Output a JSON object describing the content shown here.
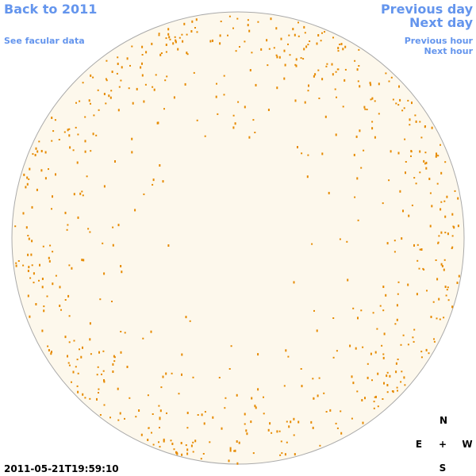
{
  "navigation": {
    "back": "Back to 2011",
    "previous_day": "Previous day",
    "next_day": "Next day",
    "facular": "See facular data",
    "previous_hour": "Previous hour",
    "next_hour": "Next hour"
  },
  "compass": {
    "north": "N",
    "east": "E",
    "center": "+",
    "west": "W",
    "south": "S"
  },
  "timestamp": "2011-05-21T19:59:10"
}
